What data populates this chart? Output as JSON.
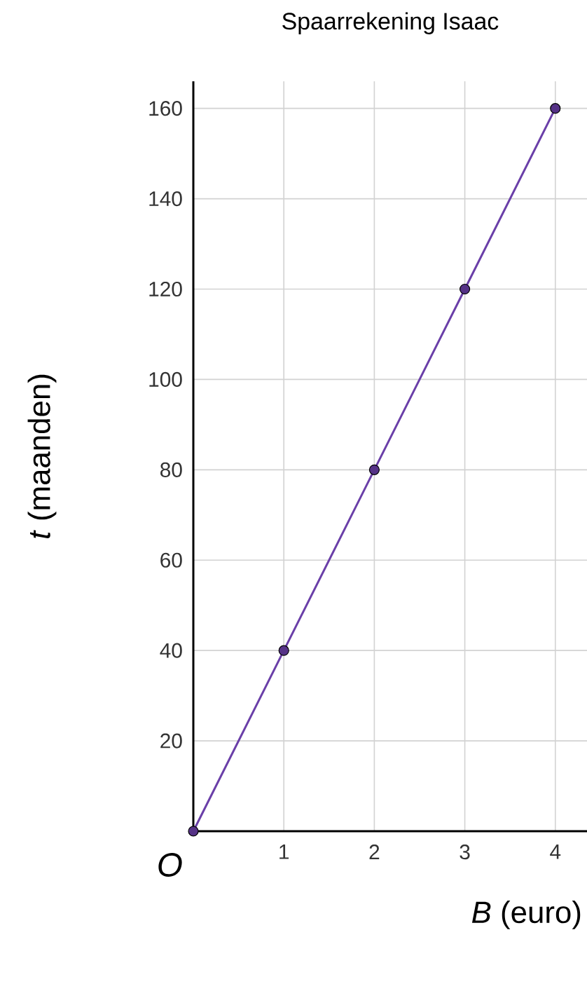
{
  "chart_data": {
    "type": "line",
    "title": "Spaarrekening Isaac",
    "xlabel": "*B* (euro)",
    "ylabel": "*t* (maanden)",
    "x": [
      0,
      1,
      2,
      3,
      4
    ],
    "series": [
      {
        "color": "#6a3fa8",
        "values": [
          0,
          40,
          80,
          120,
          160
        ]
      }
    ],
    "xlim": [
      0,
      4.35
    ],
    "ylim": [
      0,
      166
    ],
    "xticks": [
      1,
      2,
      3,
      4
    ],
    "yticks": [
      20,
      40,
      60,
      80,
      100,
      120,
      140,
      160
    ],
    "grid": true,
    "marker": "circle",
    "annotations": [
      "O"
    ]
  }
}
